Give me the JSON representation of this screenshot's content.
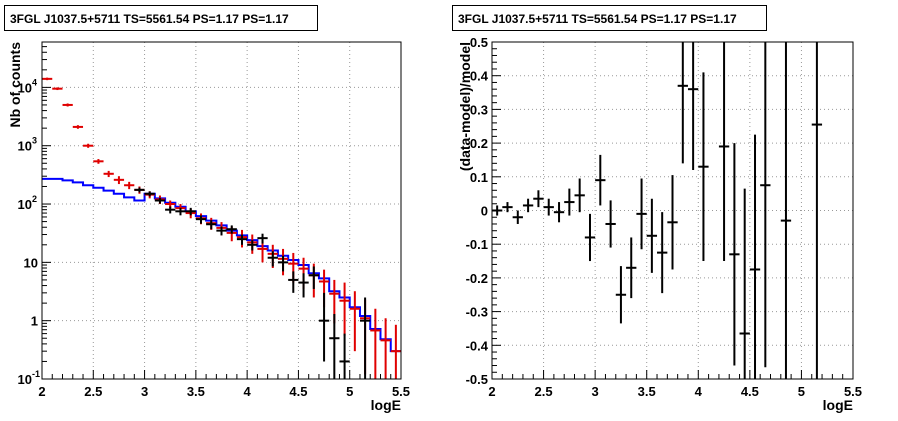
{
  "chart_data": [
    {
      "type": "line",
      "title": "3FGL J1037.5+5711 TS=5561.54 PS=1.17 PS=1.17",
      "xlabel": "logE",
      "ylabel": "Nb of counts",
      "xlim": [
        2,
        5.5
      ],
      "ylim": [
        0.1,
        60000
      ],
      "yscale": "log",
      "grid": true,
      "x_ticks": [
        "2",
        "2.5",
        "3",
        "3.5",
        "4",
        "4.5",
        "5",
        "5.5"
      ],
      "y_ticks": [
        {
          "value": 0.1,
          "base": "10",
          "exp": "-1"
        },
        {
          "value": 1,
          "base": "1",
          "exp": ""
        },
        {
          "value": 10,
          "base": "10",
          "exp": ""
        },
        {
          "value": 100,
          "base": "10",
          "exp": "2"
        },
        {
          "value": 1000,
          "base": "10",
          "exp": "3"
        },
        {
          "value": 10000,
          "base": "10",
          "exp": "4"
        }
      ],
      "bin_width": 0.1,
      "series": [
        {
          "style": "histogram",
          "color": "#0000ff",
          "x": [
            2.05,
            2.15,
            2.25,
            2.35,
            2.45,
            2.55,
            2.65,
            2.75,
            2.85,
            2.95,
            3.05,
            3.15,
            3.25,
            3.35,
            3.45,
            3.55,
            3.65,
            3.75,
            3.85,
            3.95,
            4.05,
            4.15,
            4.25,
            4.35,
            4.45,
            4.55,
            4.65,
            4.75,
            4.85,
            4.95,
            5.05,
            5.15,
            5.25,
            5.35,
            5.45
          ],
          "values": [
            270,
            270,
            255,
            235,
            210,
            190,
            170,
            150,
            130,
            115,
            150,
            125,
            105,
            90,
            75,
            62,
            52,
            43,
            35,
            29,
            24,
            19,
            16,
            13,
            11,
            9,
            6.5,
            5.3,
            3.2,
            2.5,
            1.7,
            1.2,
            0.72,
            0.48,
            0.3
          ]
        },
        {
          "style": "errorbar",
          "color": "#e00000",
          "x": [
            2.05,
            2.15,
            2.25,
            2.35,
            2.45,
            2.55,
            2.65,
            2.75,
            2.85,
            2.95,
            3.05,
            3.15,
            3.25,
            3.35,
            3.45,
            3.55,
            3.65,
            3.75,
            3.85,
            3.95,
            4.05,
            4.15,
            4.25,
            4.35,
            4.45,
            4.55,
            4.65,
            4.75,
            4.85,
            4.95,
            5.05,
            5.15,
            5.25,
            5.35,
            5.45
          ],
          "values": [
            14000,
            9500,
            5000,
            2100,
            1000,
            540,
            330,
            260,
            210,
            175,
            145,
            120,
            100,
            85,
            70,
            57,
            47,
            39,
            32,
            27,
            22,
            17,
            14,
            11.5,
            9.5,
            7.8,
            6,
            4.7,
            2.9,
            2.2,
            1.6,
            1.1,
            0.68,
            0.46,
            0.3
          ],
          "err_low": [
            13300,
            9000,
            4700,
            1950,
            920,
            490,
            290,
            220,
            180,
            150,
            125,
            100,
            85,
            70,
            57,
            45,
            36,
            29,
            23,
            18,
            14,
            10,
            8,
            6,
            4.5,
            3.5,
            2.5,
            1.7,
            0.9,
            0.55,
            0.3,
            0.12,
            0.1,
            0.1,
            0.1
          ],
          "err_high": [
            14700,
            10000,
            5300,
            2250,
            1080,
            590,
            370,
            300,
            240,
            200,
            165,
            140,
            115,
            100,
            83,
            69,
            58,
            49,
            41,
            36,
            30,
            24,
            20,
            17,
            14.5,
            12,
            9.5,
            7.5,
            5,
            4.5,
            3.2,
            2.3,
            1.6,
            1.1,
            0.85
          ]
        },
        {
          "style": "errorbar",
          "color": "#000000",
          "x": [
            2.95,
            3.05,
            3.15,
            3.25,
            3.35,
            3.45,
            3.55,
            3.65,
            3.75,
            3.85,
            3.95,
            4.05,
            4.15,
            4.25,
            4.35,
            4.45,
            4.55,
            4.65,
            4.75,
            4.85,
            4.95,
            5.15
          ],
          "values": [
            175,
            150,
            115,
            80,
            75,
            75,
            55,
            45,
            35,
            37,
            25,
            20,
            26,
            12,
            10,
            5,
            4.5,
            6,
            1,
            0.5,
            0.2,
            1
          ],
          "err_low": [
            158,
            135,
            102,
            69,
            64,
            64,
            46,
            37,
            29,
            31,
            20,
            16,
            21,
            8.5,
            7,
            3,
            2.5,
            3.5,
            0.2,
            0.1,
            0.1,
            0.1
          ],
          "err_high": [
            192,
            165,
            128,
            91,
            86,
            86,
            64,
            53,
            41,
            43,
            30,
            24,
            31,
            15.5,
            13,
            7,
            6.5,
            8.5,
            3,
            1.3,
            0.6,
            2.5
          ]
        }
      ]
    },
    {
      "type": "scatter",
      "title": "3FGL J1037.5+5711 TS=5561.54 PS=1.17 PS=1.17",
      "xlabel": "logE",
      "ylabel": "(data-model)/model",
      "xlim": [
        2,
        5.5
      ],
      "ylim": [
        -0.5,
        0.5
      ],
      "grid": true,
      "x_ticks": [
        "2",
        "2.5",
        "3",
        "3.5",
        "4",
        "4.5",
        "5",
        "5.5"
      ],
      "y_ticks": [
        "-0.5",
        "-0.4",
        "-0.3",
        "-0.2",
        "-0.1",
        "0",
        "0.1",
        "0.2",
        "0.3",
        "0.4",
        "0.5"
      ],
      "bin_width": 0.1,
      "series": [
        {
          "style": "errorbar",
          "color": "#000000",
          "x": [
            2.05,
            2.15,
            2.25,
            2.35,
            2.45,
            2.55,
            2.65,
            2.75,
            2.85,
            2.95,
            3.05,
            3.15,
            3.25,
            3.35,
            3.45,
            3.55,
            3.65,
            3.75,
            3.85,
            3.95,
            4.05,
            4.25,
            4.35,
            4.45,
            4.55,
            4.65,
            4.85,
            5.15
          ],
          "values": [
            0.0,
            0.01,
            -0.02,
            0.015,
            0.035,
            0.01,
            -0.005,
            0.025,
            0.045,
            -0.08,
            0.09,
            -0.04,
            -0.25,
            -0.17,
            -0.01,
            -0.075,
            -0.125,
            -0.035,
            0.37,
            0.36,
            0.13,
            0.19,
            -0.13,
            -0.365,
            -0.175,
            0.075,
            -0.03,
            0.255
          ],
          "err": [
            0.015,
            0.015,
            0.02,
            0.02,
            0.025,
            0.025,
            0.03,
            0.04,
            0.05,
            0.07,
            0.075,
            0.07,
            0.085,
            0.09,
            0.105,
            0.11,
            0.12,
            0.14,
            0.23,
            0.24,
            0.28,
            0.34,
            0.33,
            0.43,
            0.4,
            0.54,
            0.85,
            1.2
          ]
        }
      ]
    }
  ]
}
